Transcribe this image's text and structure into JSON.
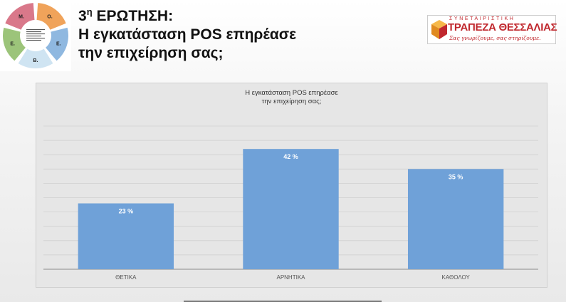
{
  "header": {
    "title_prefix": "3",
    "title_sup": "η",
    "title_word": " ΕΡΩΤΗΣΗ:",
    "title_line2": "Η εγκατάσταση POS επηρέασε",
    "title_line3": "την επιχείρηση σας;"
  },
  "logo_cycle": {
    "labels": [
      "Ο.",
      "Ε.",
      "Β.",
      "Ε.",
      "Μ."
    ],
    "colors": [
      "#f0a35a",
      "#8fb8e0",
      "#cfe4f2",
      "#9cc47a",
      "#d9788a"
    ]
  },
  "bank_logo": {
    "top_text": "ΣΥΝΕΤΑΙΡΙΣΤΙΚΗ",
    "name": "ΤΡΑΠΕΖΑ ΘΕΣΣΑΛΙΑΣ",
    "slogan": "Σας γνωρίζουμε, σας στηρίζουμε.",
    "color": "#c0282e",
    "icon_color": "#f0a030"
  },
  "chart_data": {
    "type": "bar",
    "title": "Η εγκατάσταση POS επηρέασε\nτην επιχείρηση σας;",
    "categories": [
      "ΘΕΤΙΚΑ",
      "ΑΡΝΗΤΙΚΑ",
      "ΚΑΘΟΛΟΥ"
    ],
    "values": [
      23,
      42,
      35
    ],
    "data_labels": [
      "23 %",
      "42 %",
      "35 %"
    ],
    "ylim": [
      0,
      50
    ],
    "grid": true,
    "bar_color": "#6fa1d8",
    "label_color": "#ffffff"
  }
}
